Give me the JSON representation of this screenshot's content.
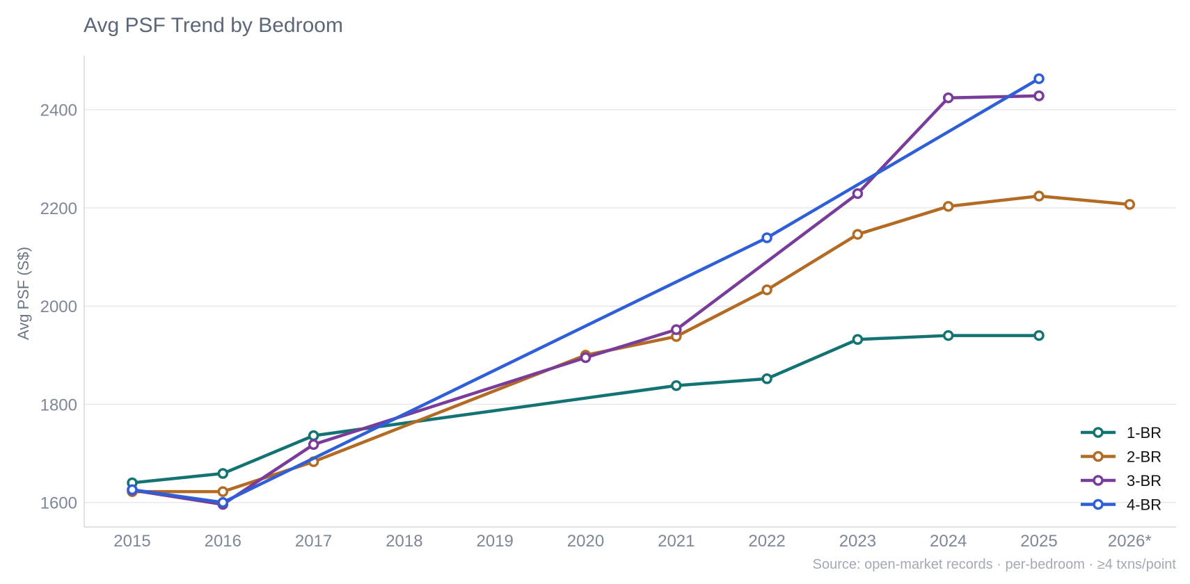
{
  "chart_data": {
    "type": "line",
    "title": "Avg PSF Trend by Bedroom",
    "xlabel": "",
    "ylabel": "Avg PSF (S$)",
    "source_note": "Source: open-market records · per-bedroom · ≥4 txns/point",
    "categories": [
      "2015",
      "2016",
      "2017",
      "2018",
      "2019",
      "2020",
      "2021",
      "2022",
      "2023",
      "2024",
      "2025",
      "2026*"
    ],
    "y_ticks": [
      1600,
      1800,
      2000,
      2200,
      2400
    ],
    "ylim": [
      1550,
      2510
    ],
    "grid": "horizontal",
    "legend_position": "bottom-right",
    "series": [
      {
        "name": "1-BR",
        "color": "#137373",
        "points": [
          [
            2015,
            1640
          ],
          [
            2016,
            1659
          ],
          [
            2017,
            1736
          ],
          [
            2021,
            1838
          ],
          [
            2022,
            1852
          ],
          [
            2023,
            1932
          ],
          [
            2024,
            1940
          ],
          [
            2025,
            1940
          ]
        ]
      },
      {
        "name": "2-BR",
        "color": "#b36a23",
        "points": [
          [
            2015,
            1622
          ],
          [
            2016,
            1622
          ],
          [
            2017,
            1683
          ],
          [
            2020,
            1900
          ],
          [
            2021,
            1938
          ],
          [
            2022,
            2033
          ],
          [
            2023,
            2146
          ],
          [
            2024,
            2203
          ],
          [
            2025,
            2224
          ],
          [
            2026,
            2207
          ]
        ]
      },
      {
        "name": "3-BR",
        "color": "#7a3c9a",
        "points": [
          [
            2015,
            1625
          ],
          [
            2016,
            1596
          ],
          [
            2017,
            1718
          ],
          [
            2020,
            1895
          ],
          [
            2021,
            1952
          ],
          [
            2023,
            2229
          ],
          [
            2024,
            2424
          ],
          [
            2025,
            2428
          ]
        ]
      },
      {
        "name": "4-BR",
        "color": "#2f5fd6",
        "points": [
          [
            2015,
            1626
          ],
          [
            2016,
            1600
          ],
          [
            2022,
            2139
          ],
          [
            2025,
            2463
          ]
        ]
      }
    ]
  }
}
